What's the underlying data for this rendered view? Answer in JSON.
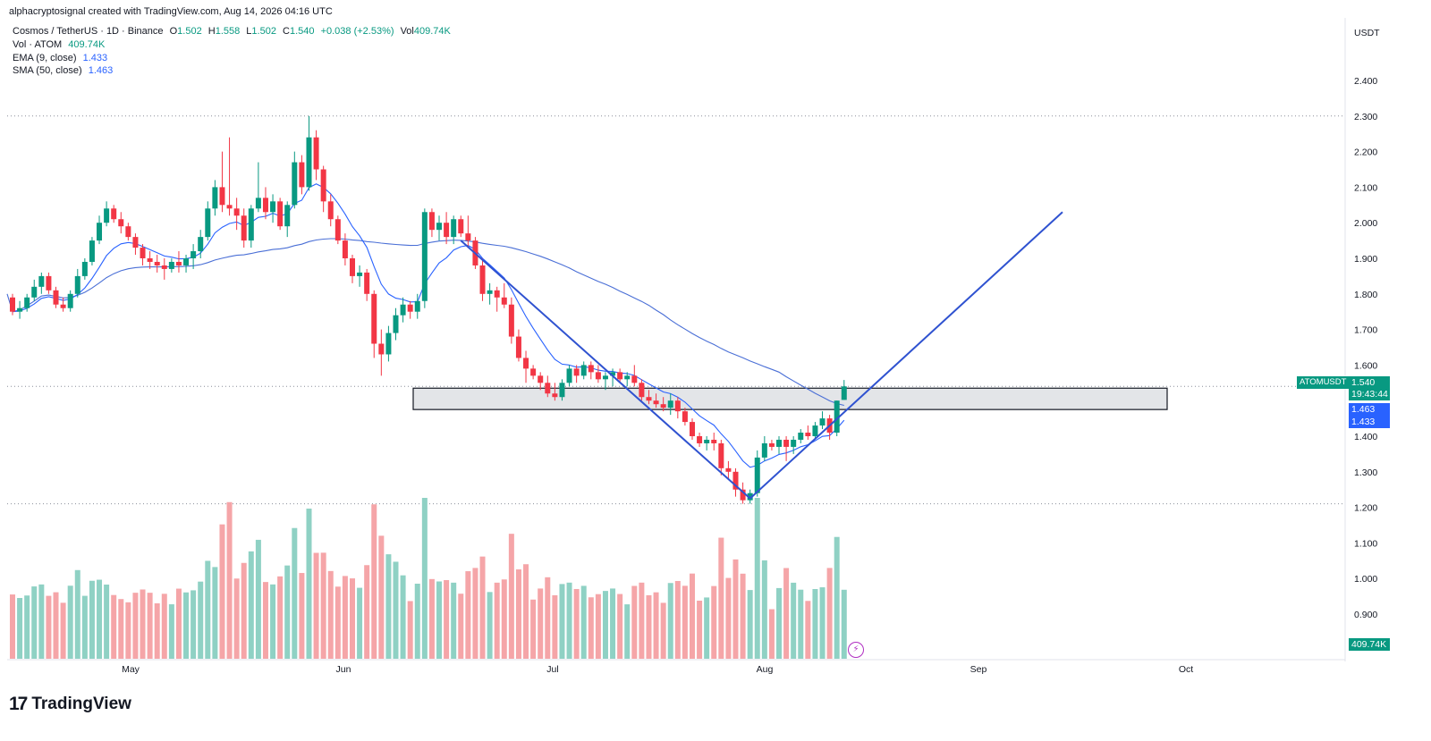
{
  "attribution": "alphacryptosignal created with TradingView.com, Aug 14, 2026 04:16 UTC",
  "legend": {
    "symbol": "Cosmos / TetherUS · 1D · Binance",
    "open_label": "O",
    "open": "1.502",
    "high_label": "H",
    "high": "1.558",
    "low_label": "L",
    "low": "1.502",
    "close_label": "C",
    "close": "1.540",
    "change": "+0.038 (+2.53%)",
    "vol_label": "Vol",
    "vol": "409.74K",
    "volume_line_label": "Vol · ATOM",
    "volume_line_value": "409.74K",
    "ema_label": "EMA (9, close)",
    "ema_value": "1.433",
    "sma_label": "SMA (50, close)",
    "sma_value": "1.463"
  },
  "currency": "USDT",
  "labels": {
    "symbol_tag": "ATOMUSDT",
    "last_price": "1.540",
    "countdown": "19:43:44",
    "sma_price": "1.463",
    "ema_price": "1.433",
    "volume": "409.74K"
  },
  "brand": {
    "mark": "17",
    "name": "TradingView"
  },
  "colors": {
    "up": "#089981",
    "down": "#f23645",
    "vol_up": "#8fd1c4",
    "vol_down": "#f5a5a8",
    "ema": "#2962ff",
    "sma": "#4a6fd6",
    "trendline": "#2f52d0",
    "zone_fill": "#e3e5e8",
    "zone_stroke": "#131722"
  },
  "chart_data": {
    "type": "candlestick",
    "x_axis": {
      "ticks": [
        "May",
        "Jun",
        "Jul",
        "Aug",
        "Sep",
        "Oct"
      ]
    },
    "y_axis": {
      "ticks": [
        "2.400",
        "2.300",
        "2.200",
        "2.100",
        "2.000",
        "1.900",
        "1.800",
        "1.700",
        "1.600",
        "1.400",
        "1.300",
        "1.200",
        "1.100",
        "1.000",
        "0.900"
      ]
    },
    "dotted_levels": [
      2.3,
      1.54,
      1.21
    ],
    "zone": {
      "low": 1.475,
      "high": 1.535
    },
    "trendlines": [
      {
        "from": [
          1.95,
          "Jun 17"
        ],
        "to": [
          1.225,
          "Aug 1"
        ]
      },
      {
        "from": [
          1.225,
          "Aug 1"
        ],
        "to": [
          2.03,
          "Sep 14"
        ]
      }
    ],
    "ohlc": [
      [
        1.79,
        1.8,
        1.74,
        1.75
      ],
      [
        1.75,
        1.78,
        1.73,
        1.76
      ],
      [
        1.76,
        1.8,
        1.75,
        1.79
      ],
      [
        1.79,
        1.84,
        1.78,
        1.82
      ],
      [
        1.82,
        1.86,
        1.8,
        1.85
      ],
      [
        1.85,
        1.86,
        1.8,
        1.81
      ],
      [
        1.81,
        1.82,
        1.76,
        1.77
      ],
      [
        1.77,
        1.79,
        1.75,
        1.76
      ],
      [
        1.76,
        1.81,
        1.75,
        1.8
      ],
      [
        1.8,
        1.87,
        1.79,
        1.85
      ],
      [
        1.85,
        1.9,
        1.84,
        1.89
      ],
      [
        1.89,
        1.96,
        1.88,
        1.95
      ],
      [
        1.95,
        2.02,
        1.94,
        2.0
      ],
      [
        2.0,
        2.06,
        1.99,
        2.04
      ],
      [
        2.04,
        2.05,
        2.0,
        2.01
      ],
      [
        2.01,
        2.03,
        1.97,
        1.99
      ],
      [
        1.99,
        2.0,
        1.95,
        1.96
      ],
      [
        1.96,
        1.97,
        1.91,
        1.93
      ],
      [
        1.93,
        1.94,
        1.88,
        1.9
      ],
      [
        1.9,
        1.92,
        1.87,
        1.89
      ],
      [
        1.89,
        1.91,
        1.86,
        1.88
      ],
      [
        1.88,
        1.9,
        1.84,
        1.87
      ],
      [
        1.87,
        1.9,
        1.86,
        1.89
      ],
      [
        1.89,
        1.92,
        1.86,
        1.88
      ],
      [
        1.88,
        1.91,
        1.86,
        1.9
      ],
      [
        1.9,
        1.94,
        1.87,
        1.92
      ],
      [
        1.92,
        1.98,
        1.9,
        1.96
      ],
      [
        1.96,
        2.06,
        1.95,
        2.04
      ],
      [
        2.04,
        2.12,
        2.02,
        2.1
      ],
      [
        2.1,
        2.2,
        2.03,
        2.05
      ],
      [
        2.05,
        2.24,
        2.02,
        2.04
      ],
      [
        2.04,
        2.07,
        1.98,
        2.02
      ],
      [
        2.02,
        2.04,
        1.93,
        1.95
      ],
      [
        1.95,
        2.05,
        1.93,
        2.04
      ],
      [
        2.04,
        2.17,
        2.03,
        2.07
      ],
      [
        2.07,
        2.1,
        2.01,
        2.03
      ],
      [
        2.03,
        2.08,
        2.0,
        2.06
      ],
      [
        2.06,
        2.07,
        1.98,
        1.99
      ],
      [
        1.99,
        2.06,
        1.96,
        2.05
      ],
      [
        2.05,
        2.2,
        2.04,
        2.17
      ],
      [
        2.17,
        2.19,
        2.08,
        2.1
      ],
      [
        2.1,
        2.3,
        2.09,
        2.24
      ],
      [
        2.24,
        2.26,
        2.12,
        2.15
      ],
      [
        2.15,
        2.16,
        2.03,
        2.06
      ],
      [
        2.06,
        2.08,
        1.99,
        2.01
      ],
      [
        2.01,
        2.02,
        1.94,
        1.95
      ],
      [
        1.95,
        1.97,
        1.88,
        1.9
      ],
      [
        1.9,
        1.91,
        1.83,
        1.85
      ],
      [
        1.85,
        1.88,
        1.82,
        1.86
      ],
      [
        1.86,
        1.87,
        1.78,
        1.8
      ],
      [
        1.8,
        1.81,
        1.62,
        1.66
      ],
      [
        1.66,
        1.7,
        1.57,
        1.63
      ],
      [
        1.63,
        1.71,
        1.61,
        1.69
      ],
      [
        1.69,
        1.76,
        1.67,
        1.74
      ],
      [
        1.74,
        1.79,
        1.72,
        1.77
      ],
      [
        1.77,
        1.78,
        1.73,
        1.75
      ],
      [
        1.75,
        1.8,
        1.73,
        1.78
      ],
      [
        1.78,
        2.04,
        1.76,
        2.03
      ],
      [
        2.03,
        2.04,
        1.96,
        1.98
      ],
      [
        1.98,
        2.02,
        1.95,
        2.0
      ],
      [
        2.0,
        2.03,
        1.94,
        1.96
      ],
      [
        1.96,
        2.02,
        1.94,
        2.01
      ],
      [
        2.01,
        2.02,
        1.96,
        1.97
      ],
      [
        1.97,
        2.02,
        1.93,
        1.95
      ],
      [
        1.95,
        1.96,
        1.87,
        1.88
      ],
      [
        1.88,
        1.9,
        1.78,
        1.8
      ],
      [
        1.8,
        1.83,
        1.77,
        1.81
      ],
      [
        1.81,
        1.82,
        1.75,
        1.79
      ],
      [
        1.79,
        1.83,
        1.76,
        1.77
      ],
      [
        1.77,
        1.79,
        1.66,
        1.68
      ],
      [
        1.68,
        1.7,
        1.61,
        1.62
      ],
      [
        1.62,
        1.64,
        1.55,
        1.59
      ],
      [
        1.59,
        1.6,
        1.56,
        1.57
      ],
      [
        1.57,
        1.58,
        1.53,
        1.55
      ],
      [
        1.55,
        1.57,
        1.51,
        1.52
      ],
      [
        1.52,
        1.55,
        1.5,
        1.51
      ],
      [
        1.51,
        1.56,
        1.5,
        1.55
      ],
      [
        1.55,
        1.6,
        1.54,
        1.59
      ],
      [
        1.59,
        1.6,
        1.55,
        1.57
      ],
      [
        1.57,
        1.61,
        1.56,
        1.6
      ],
      [
        1.6,
        1.61,
        1.56,
        1.58
      ],
      [
        1.58,
        1.6,
        1.55,
        1.56
      ],
      [
        1.56,
        1.58,
        1.53,
        1.57
      ],
      [
        1.57,
        1.59,
        1.54,
        1.58
      ],
      [
        1.58,
        1.59,
        1.55,
        1.56
      ],
      [
        1.56,
        1.58,
        1.54,
        1.57
      ],
      [
        1.57,
        1.6,
        1.54,
        1.55
      ],
      [
        1.55,
        1.56,
        1.5,
        1.51
      ],
      [
        1.51,
        1.53,
        1.49,
        1.5
      ],
      [
        1.5,
        1.52,
        1.48,
        1.49
      ],
      [
        1.49,
        1.51,
        1.47,
        1.48
      ],
      [
        1.48,
        1.52,
        1.46,
        1.5
      ],
      [
        1.5,
        1.51,
        1.45,
        1.47
      ],
      [
        1.47,
        1.48,
        1.43,
        1.44
      ],
      [
        1.44,
        1.45,
        1.39,
        1.4
      ],
      [
        1.4,
        1.41,
        1.37,
        1.38
      ],
      [
        1.38,
        1.4,
        1.36,
        1.39
      ],
      [
        1.39,
        1.41,
        1.36,
        1.38
      ],
      [
        1.38,
        1.39,
        1.29,
        1.31
      ],
      [
        1.31,
        1.33,
        1.28,
        1.3
      ],
      [
        1.3,
        1.31,
        1.23,
        1.25
      ],
      [
        1.25,
        1.27,
        1.21,
        1.22
      ],
      [
        1.22,
        1.25,
        1.21,
        1.24
      ],
      [
        1.24,
        1.36,
        1.23,
        1.34
      ],
      [
        1.34,
        1.4,
        1.33,
        1.38
      ],
      [
        1.38,
        1.39,
        1.36,
        1.37
      ],
      [
        1.37,
        1.4,
        1.35,
        1.39
      ],
      [
        1.39,
        1.4,
        1.33,
        1.37
      ],
      [
        1.37,
        1.4,
        1.35,
        1.39
      ],
      [
        1.39,
        1.42,
        1.38,
        1.41
      ],
      [
        1.41,
        1.43,
        1.39,
        1.4
      ],
      [
        1.4,
        1.44,
        1.39,
        1.43
      ],
      [
        1.43,
        1.47,
        1.42,
        1.45
      ],
      [
        1.45,
        1.46,
        1.39,
        1.41
      ],
      [
        1.41,
        1.5,
        1.4,
        1.5
      ],
      [
        1.502,
        1.558,
        1.502,
        1.54
      ]
    ],
    "volume_label": "Vol · ATOM"
  }
}
